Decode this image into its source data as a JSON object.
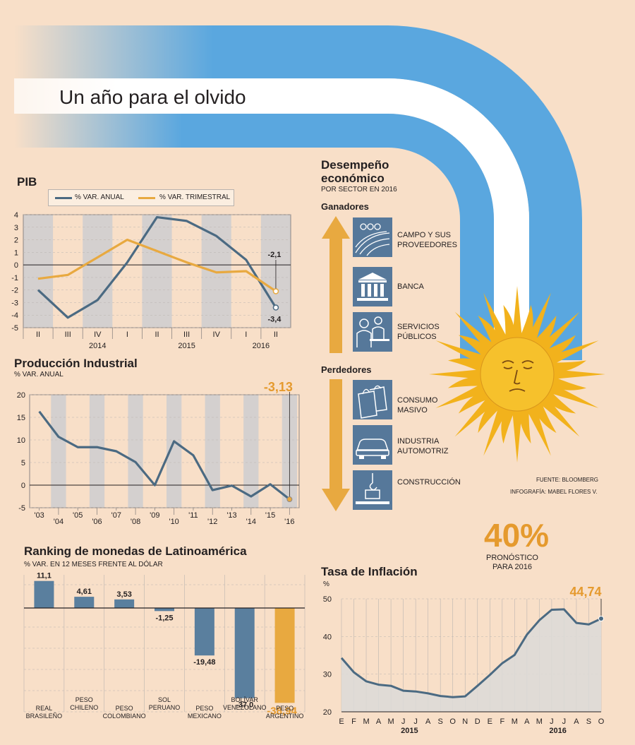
{
  "header": {
    "title": "Un año para el olvido"
  },
  "colors": {
    "blue": "#5aa7df",
    "navy": "#4b6a82",
    "orange": "#e8a940",
    "orange_text": "#e59a2e",
    "grey_band": "#d4d0cf",
    "background": "#f8dfc8"
  },
  "pib": {
    "title": "PIB",
    "legend": {
      "annual": "% VAR. ANUAL",
      "quarterly": "% VAR. TRIMESTRAL"
    },
    "end_labels": {
      "quarterly": "-2,1",
      "annual": "-3,4"
    }
  },
  "industrial": {
    "title": "Producción Industrial",
    "subtitle": "% VAR. ANUAL",
    "end_label": "-3,13"
  },
  "currencies": {
    "title": "Ranking de monedas de Latinoamérica",
    "subtitle": "% VAR. EN 12 MESES FRENTE AL DÓLAR"
  },
  "inflation": {
    "title": "Tasa de Inflación",
    "unit": "%",
    "end_label": "44,74"
  },
  "forecast": {
    "value": "40%",
    "label_line1": "PRONÓSTICO",
    "label_line2": "PARA 2016"
  },
  "sectors": {
    "title_line1": "Desempeño",
    "title_line2": "económico",
    "subtitle": "POR SECTOR EN 2016",
    "winners_label": "Ganadores",
    "losers_label": "Perdedores",
    "winners": [
      {
        "line1": "CAMPO Y SUS",
        "line2": "PROVEEDORES",
        "icon": "field-icon"
      },
      {
        "line1": "BANCA",
        "line2": "",
        "icon": "bank-icon"
      },
      {
        "line1": "SERVICIOS",
        "line2": "PÚBLICOS",
        "icon": "public-services-icon"
      }
    ],
    "losers": [
      {
        "line1": "CONSUMO",
        "line2": "MASIVO",
        "icon": "shopping-bags-icon"
      },
      {
        "line1": "INDUSTRIA",
        "line2": "AUTOMOTRIZ",
        "icon": "car-icon"
      },
      {
        "line1": "CONSTRUCCIÓN",
        "line2": "",
        "icon": "crane-icon"
      }
    ]
  },
  "credits": {
    "source": "FUENTE: BLOOMBERG",
    "graphics": "INFOGRAFÍA: MABEL FLORES V."
  },
  "chart_data": [
    {
      "type": "line",
      "title": "PIB",
      "x": [
        "II",
        "III",
        "IV",
        "I",
        "II",
        "III",
        "IV",
        "I",
        "II"
      ],
      "year_labels": [
        {
          "label": "2014",
          "at": 2
        },
        {
          "label": "2015",
          "at": 5
        },
        {
          "label": "2016",
          "at": 7.5
        }
      ],
      "series": [
        {
          "name": "% VAR. ANUAL",
          "color": "#4b6a82",
          "values": [
            -2.0,
            -4.2,
            -2.8,
            0.2,
            3.8,
            3.5,
            2.3,
            0.4,
            -3.4
          ]
        },
        {
          "name": "% VAR. TRIMESTRAL",
          "color": "#e8a940",
          "values": [
            -1.1,
            -0.8,
            0.6,
            2.0,
            1.1,
            0.2,
            -0.6,
            -0.5,
            -2.1
          ]
        }
      ],
      "yticks": [
        4,
        3,
        2,
        1,
        0,
        -1,
        -2,
        -3,
        -4,
        -5
      ],
      "ylim": [
        -5,
        4
      ]
    },
    {
      "type": "line",
      "title": "Producción Industrial",
      "ylabel": "% VAR. ANUAL",
      "year_ticks": [
        "'03",
        "'04",
        "'05",
        "'06",
        "'07",
        "'08",
        "'09",
        "'10",
        "'11",
        "'12",
        "'13",
        "'14",
        "'15",
        "'16"
      ],
      "x": [
        2003,
        2004,
        2005,
        2006,
        2007,
        2008,
        2009,
        2010,
        2011,
        2012,
        2013,
        2014,
        2015,
        2016
      ],
      "values": [
        16.3,
        10.7,
        8.4,
        8.4,
        7.5,
        5.1,
        0.0,
        9.7,
        6.6,
        -1.1,
        -0.1,
        -2.5,
        0.2,
        -3.13
      ],
      "yticks": [
        20,
        15,
        10,
        5,
        0,
        -5
      ],
      "ylim": [
        -5,
        20
      ]
    },
    {
      "type": "bar",
      "title": "Ranking de monedas de Latinoamérica",
      "ylabel": "% VAR. EN 12 MESES FRENTE AL DÓLAR",
      "categories": [
        {
          "line1": "REAL",
          "line2": "BRASILEÑO"
        },
        {
          "line1": "PESO",
          "line2": "CHILENO"
        },
        {
          "line1": "PESO",
          "line2": "COLOMBIANO"
        },
        {
          "line1": "SOL",
          "line2": "PERUANO"
        },
        {
          "line1": "PESO",
          "line2": "MEXICANO"
        },
        {
          "line1": "BOLÍVAR",
          "line2": "VENEZOLANO"
        },
        {
          "line1": "PESO",
          "line2": "ARGENTINO"
        }
      ],
      "values": [
        11.1,
        4.61,
        3.53,
        -1.25,
        -19.48,
        -37.0,
        -38.94
      ],
      "value_labels": [
        "11,1",
        "4,61",
        "3,53",
        "-1,25",
        "-19,48",
        "-37,0",
        "-38,94"
      ]
    },
    {
      "type": "area",
      "title": "Tasa de Inflación",
      "ylabel": "%",
      "months": [
        "E",
        "F",
        "M",
        "A",
        "M",
        "J",
        "J",
        "A",
        "S",
        "O",
        "N",
        "D",
        "E",
        "F",
        "M",
        "A",
        "M",
        "J",
        "J",
        "A",
        "S",
        "O"
      ],
      "year_labels": [
        {
          "label": "2015",
          "at": 5.5
        },
        {
          "label": "2016",
          "at": 17.5
        }
      ],
      "values": [
        34.3,
        30.5,
        28.1,
        27.2,
        26.9,
        25.6,
        25.4,
        24.9,
        24.2,
        23.9,
        24.1,
        26.9,
        29.8,
        32.9,
        35.1,
        40.5,
        44.3,
        47.1,
        47.2,
        43.6,
        43.2,
        44.74
      ],
      "yticks": [
        50,
        40,
        30,
        20
      ],
      "ylim": [
        20,
        50
      ]
    }
  ]
}
